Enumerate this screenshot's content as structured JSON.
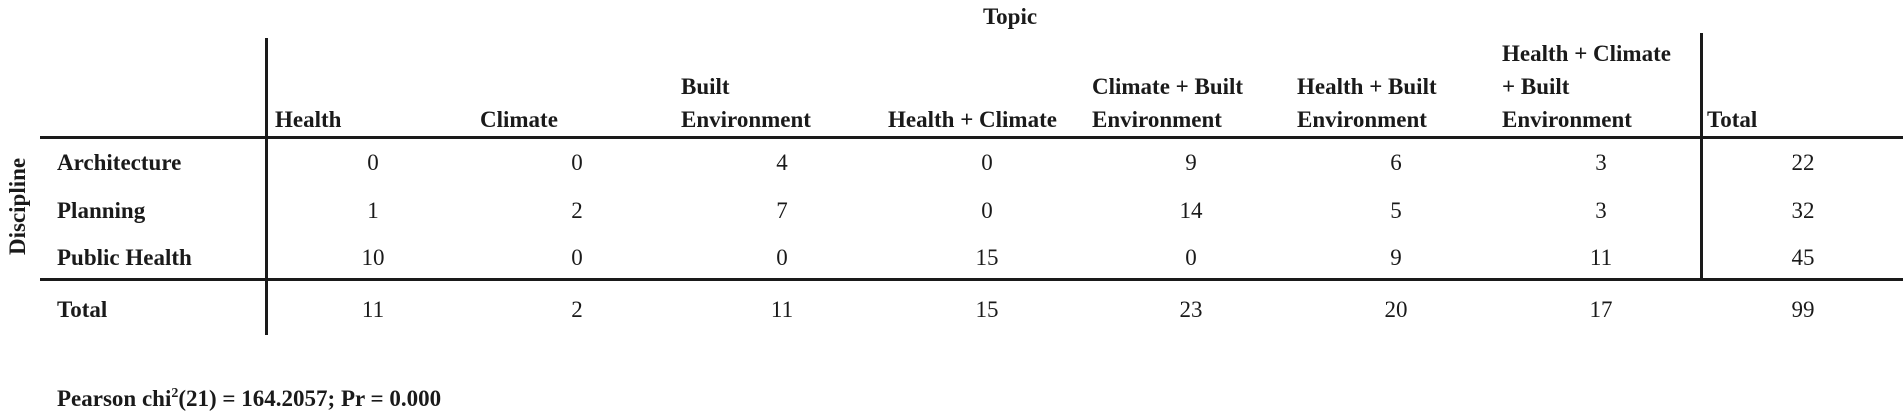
{
  "table": {
    "column_group_label": "Topic",
    "row_group_label": "Discipline",
    "columns": [
      [
        "Health"
      ],
      [
        "Climate"
      ],
      [
        "Built",
        "Environment"
      ],
      [
        "Health + Climate"
      ],
      [
        "Climate + Built",
        "Environment"
      ],
      [
        "Health + Built",
        "Environment"
      ],
      [
        "Health + Climate",
        "+ Built",
        "Environment"
      ],
      [
        "Total"
      ]
    ],
    "rows": [
      {
        "label": "Architecture",
        "values": [
          "0",
          "0",
          "4",
          "0",
          "9",
          "6",
          "3",
          "22"
        ]
      },
      {
        "label": "Planning",
        "values": [
          "1",
          "2",
          "7",
          "0",
          "14",
          "5",
          "3",
          "32"
        ]
      },
      {
        "label": "Public Health",
        "values": [
          "10",
          "0",
          "0",
          "15",
          "0",
          "9",
          "11",
          "45"
        ]
      }
    ],
    "total_row": {
      "label": "Total",
      "values": [
        "11",
        "2",
        "11",
        "15",
        "23",
        "20",
        "17",
        "99"
      ]
    }
  },
  "statistic": {
    "prefix": "Pearson chi",
    "superscript": "2",
    "suffix": "(21) = 164.2057;   Pr = 0.000"
  }
}
